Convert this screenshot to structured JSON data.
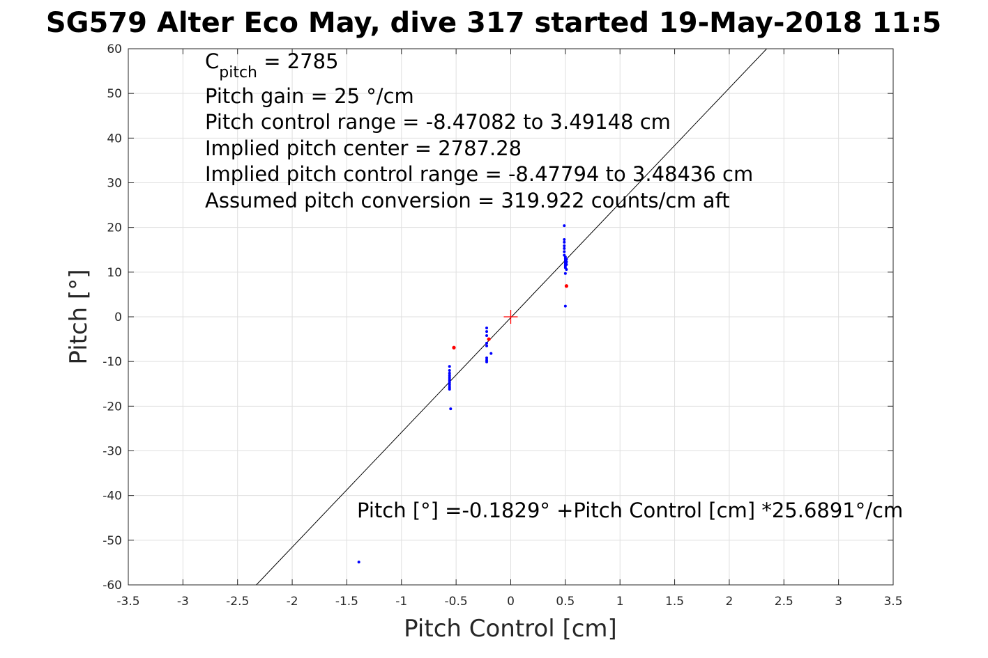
{
  "chart_data": {
    "type": "scatter",
    "title": "SG579 Alter Eco May, dive 317 started 19-May-2018 11:5",
    "xlabel": "Pitch Control [cm]",
    "ylabel": "Pitch [°]",
    "xlim": [
      -3.5,
      3.5
    ],
    "ylim": [
      -60,
      60
    ],
    "xticks": [
      -3.5,
      -3,
      -2.5,
      -2,
      -1.5,
      -1,
      -0.5,
      0,
      0.5,
      1,
      1.5,
      2,
      2.5,
      3,
      3.5
    ],
    "yticks": [
      -60,
      -50,
      -40,
      -30,
      -20,
      -10,
      0,
      10,
      20,
      30,
      40,
      50,
      60
    ],
    "xtick_labels": [
      "-3.5",
      "-3",
      "-2.5",
      "-2",
      "-1.5",
      "-1",
      "-0.5",
      "0",
      "0.5",
      "1",
      "1.5",
      "2",
      "2.5",
      "3",
      "3.5"
    ],
    "ytick_labels": [
      "-60",
      "-50",
      "-40",
      "-30",
      "-20",
      "-10",
      "0",
      "10",
      "20",
      "30",
      "40",
      "50",
      "60"
    ],
    "grid": true,
    "colors": {
      "blue": "#0000ff",
      "red": "#ff0000",
      "fit": "#000000",
      "grid": "#dfdfdf",
      "axes": "#262626"
    },
    "fit_line": {
      "intercept": -0.1829,
      "slope": 25.6891
    },
    "center_marker": {
      "x": 0,
      "y": 0,
      "color": "#ff0000",
      "shape": "plus"
    },
    "series": [
      {
        "color": "#0000ff",
        "points": [
          [
            0.49,
            20.4
          ],
          [
            0.49,
            17.3
          ],
          [
            0.49,
            16.7
          ],
          [
            0.49,
            15.9
          ],
          [
            0.49,
            15.3
          ],
          [
            0.49,
            14.6
          ],
          [
            0.49,
            13.8
          ],
          [
            0.5,
            13.4
          ],
          [
            0.5,
            13.0
          ],
          [
            0.5,
            12.6
          ],
          [
            0.5,
            12.2
          ],
          [
            0.5,
            11.8
          ],
          [
            0.5,
            11.4
          ],
          [
            0.5,
            11.0
          ],
          [
            0.51,
            10.6
          ],
          [
            0.51,
            12.9
          ],
          [
            0.51,
            12.3
          ],
          [
            0.51,
            11.7
          ],
          [
            0.5,
            9.7
          ],
          [
            0.5,
            2.4
          ],
          [
            -0.22,
            -2.5
          ],
          [
            -0.22,
            -3.3
          ],
          [
            -0.22,
            -4.2
          ],
          [
            -0.22,
            -5.9
          ],
          [
            -0.22,
            -6.5
          ],
          [
            -0.22,
            -9.2
          ],
          [
            -0.22,
            -9.7
          ],
          [
            -0.22,
            -10.1
          ],
          [
            -0.18,
            -8.2
          ],
          [
            -0.56,
            -11.1
          ],
          [
            -0.56,
            -12.0
          ],
          [
            -0.56,
            -12.6
          ],
          [
            -0.56,
            -13.1
          ],
          [
            -0.56,
            -13.5
          ],
          [
            -0.56,
            -13.9
          ],
          [
            -0.56,
            -14.3
          ],
          [
            -0.56,
            -14.7
          ],
          [
            -0.56,
            -15.1
          ],
          [
            -0.56,
            -15.5
          ],
          [
            -0.56,
            -15.9
          ],
          [
            -0.56,
            -16.2
          ],
          [
            -0.55,
            -20.6
          ],
          [
            -1.39,
            -54.9
          ]
        ]
      },
      {
        "color": "#ff0000",
        "points": [
          [
            -0.52,
            -6.9
          ],
          [
            0.51,
            6.9
          ],
          [
            -0.2,
            -5.0
          ]
        ]
      }
    ],
    "annotations": {
      "c_pitch_symbol": "C",
      "c_pitch_subscript": "pitch",
      "c_pitch_value": " = 2785",
      "pitch_gain": "Pitch gain = 25 °/cm",
      "control_range": "Pitch control range = -8.47082 to 3.49148 cm",
      "implied_center": "Implied pitch center = 2787.28",
      "implied_range": "Implied pitch control range = -8.47794 to 3.48436 cm",
      "conversion": "Assumed pitch conversion = 319.922 counts/cm aft",
      "fit_equation": "Pitch [°] =-0.1829° +Pitch Control [cm] *25.6891°/cm"
    }
  }
}
